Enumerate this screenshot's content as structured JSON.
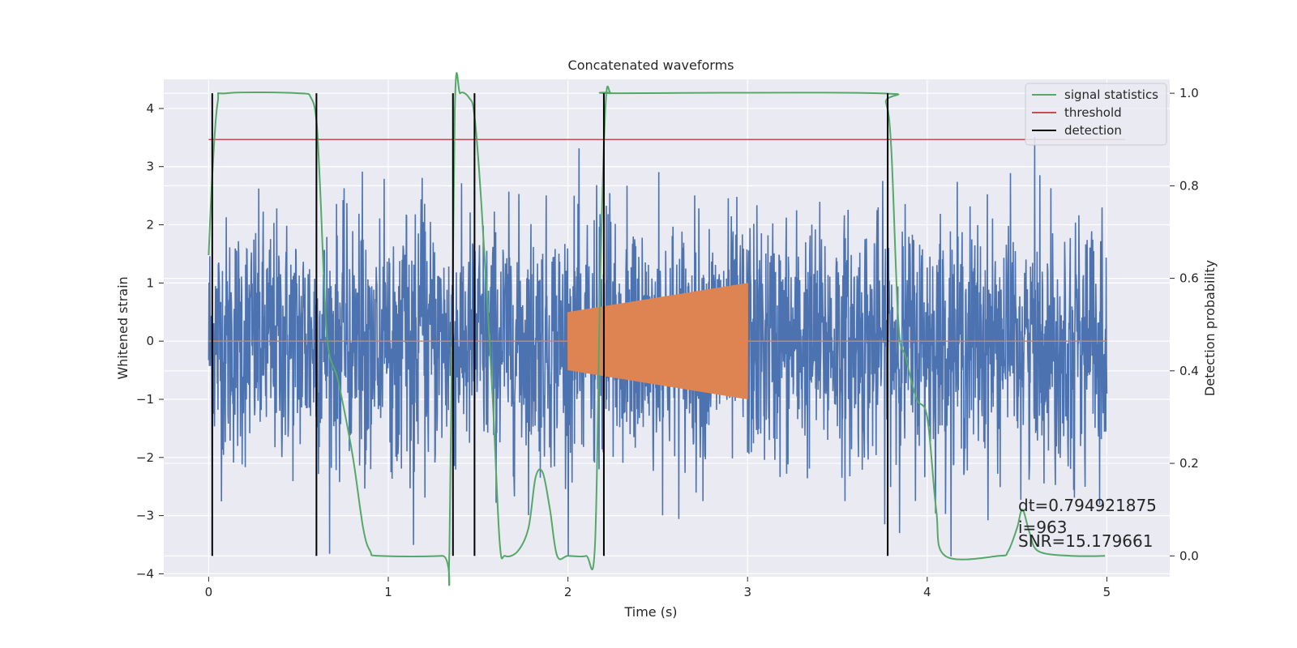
{
  "chart_data": {
    "type": "line",
    "title": "Concatenated waveforms",
    "xlabel": "Time (s)",
    "ylabel": "Whitened strain",
    "ylabel_right": "Detection probability",
    "xlim": [
      -0.25,
      5.35
    ],
    "ylim": [
      -4.05,
      4.5
    ],
    "ylim_right": [
      -0.045,
      1.03
    ],
    "xticks": [
      0,
      1,
      2,
      3,
      4,
      5
    ],
    "xtick_labels": [
      "0",
      "1",
      "2",
      "3",
      "4",
      "5"
    ],
    "yticks": [
      -4,
      -3,
      -2,
      -1,
      0,
      1,
      2,
      3,
      4
    ],
    "ytick_labels": [
      "−4",
      "−3",
      "−2",
      "−1",
      "0",
      "1",
      "2",
      "3",
      "4"
    ],
    "yticks_right": [
      0.0,
      0.2,
      0.4,
      0.6,
      0.8,
      1.0
    ],
    "ytick_labels_right": [
      "0.0",
      "0.2",
      "0.4",
      "0.6",
      "0.8",
      "1.0"
    ],
    "grid": true,
    "legend_position": "top-right",
    "legend": [
      {
        "label": "signal statistics",
        "color": "#55a868"
      },
      {
        "label": "threshold",
        "color": "#c44e52"
      },
      {
        "label": "detection",
        "color": "#000000"
      }
    ],
    "noise_series": {
      "color": "#4c72b0",
      "x_range": [
        0,
        5
      ],
      "amplitude_range": [
        -3.7,
        4.4
      ]
    },
    "injected_signal": {
      "color": "#dd8452",
      "x_range": [
        2.0,
        3.0
      ],
      "amplitude_start": 0.5,
      "amplitude_end": 1.0
    },
    "signal_statistics": {
      "color": "#55a868",
      "x": [
        0.0,
        0.02,
        0.05,
        0.1,
        0.5,
        0.57,
        0.6,
        0.62,
        0.66,
        0.72,
        0.8,
        0.86,
        0.9,
        0.95,
        1.3,
        1.34,
        1.37,
        1.4,
        1.45,
        1.48,
        1.52,
        1.58,
        1.62,
        1.65,
        1.72,
        1.78,
        1.82,
        1.86,
        1.9,
        1.94,
        2.0,
        2.1,
        2.15,
        2.18,
        2.21,
        2.24,
        2.3,
        3.72,
        3.77,
        3.8,
        3.84,
        3.88,
        3.94,
        4.0,
        4.05,
        4.1,
        4.4,
        4.45,
        4.5,
        4.53,
        4.57,
        4.62,
        4.8,
        4.99
      ],
      "y": [
        0.65,
        0.82,
        0.98,
        1.0,
        1.0,
        0.99,
        0.94,
        0.8,
        0.47,
        0.38,
        0.22,
        0.06,
        0.01,
        0.0,
        0.0,
        0.01,
        0.96,
        1.0,
        0.99,
        0.95,
        0.75,
        0.35,
        0.03,
        0.0,
        0.01,
        0.06,
        0.17,
        0.18,
        0.1,
        0.0,
        0.0,
        0.0,
        0.02,
        0.6,
        0.98,
        1.0,
        1.0,
        1.0,
        0.98,
        0.88,
        0.5,
        0.43,
        0.34,
        0.3,
        0.1,
        0.0,
        0.0,
        0.01,
        0.06,
        0.1,
        0.05,
        0.01,
        0.0,
        0.0
      ]
    },
    "threshold": {
      "color": "#c44e52",
      "x_range": [
        0,
        5.1
      ],
      "value": 0.9
    },
    "detections": {
      "color": "#000000",
      "x": [
        0.02,
        0.6,
        1.36,
        1.48,
        2.2,
        3.78
      ],
      "y_range": [
        0.0,
        1.0
      ]
    },
    "annotations": [
      "dt=0.794921875",
      " i=963",
      "SNR=15.179661"
    ]
  }
}
